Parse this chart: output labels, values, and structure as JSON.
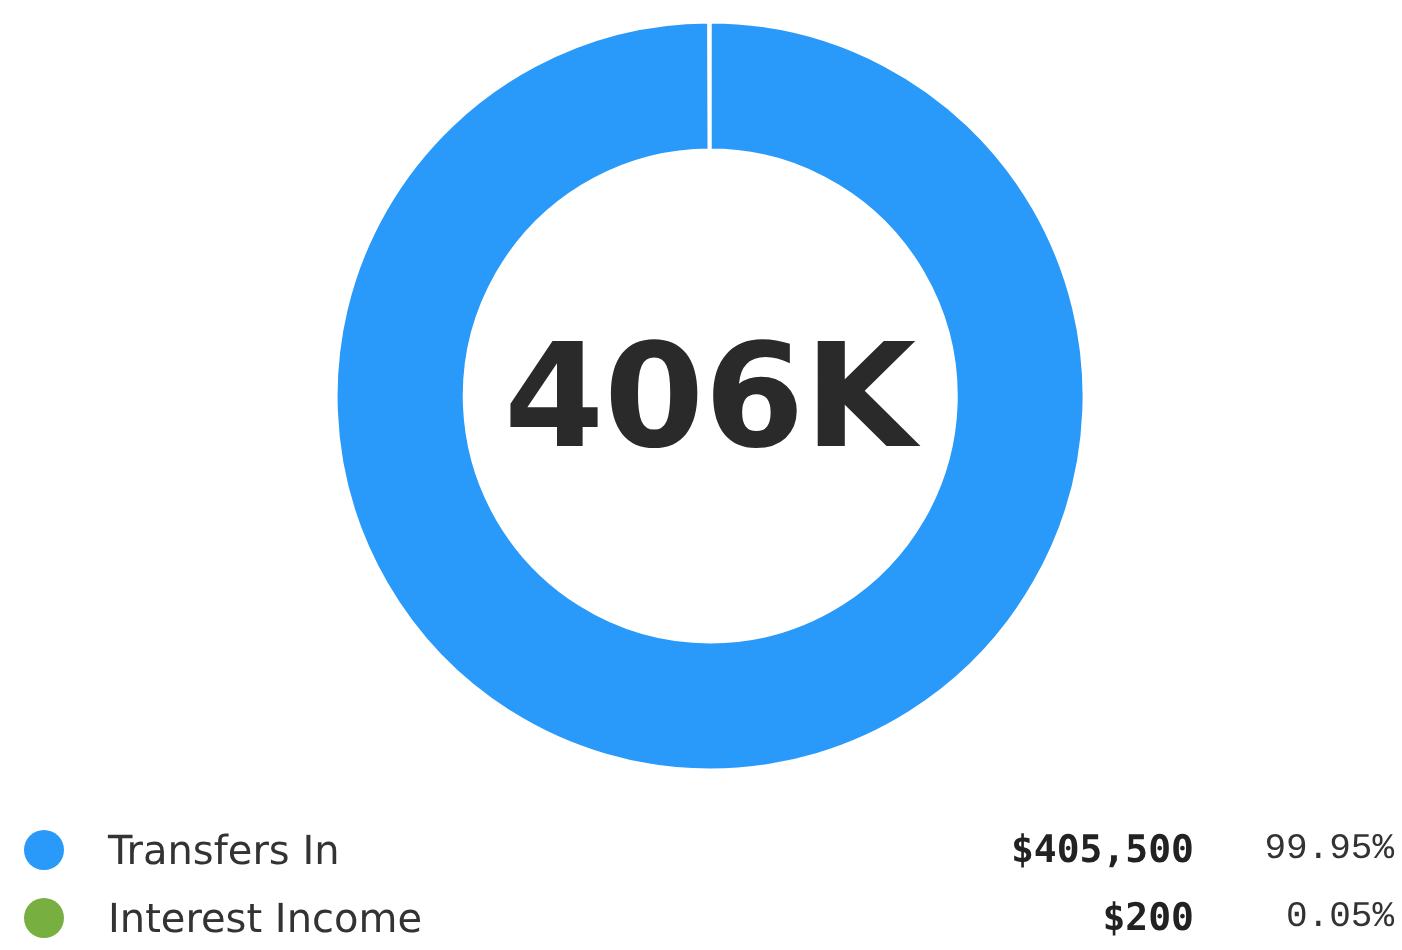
{
  "chart_data": {
    "type": "donut",
    "title": "406K",
    "categories": [
      "Transfers In",
      "Interest Income"
    ],
    "values": [
      405500,
      200
    ],
    "colors": [
      "#2999fa",
      "#77b041"
    ],
    "value_labels": [
      "$405,500",
      "$200"
    ],
    "annotations": [
      "99.95%",
      "0.05%"
    ],
    "legend": "bottom"
  }
}
